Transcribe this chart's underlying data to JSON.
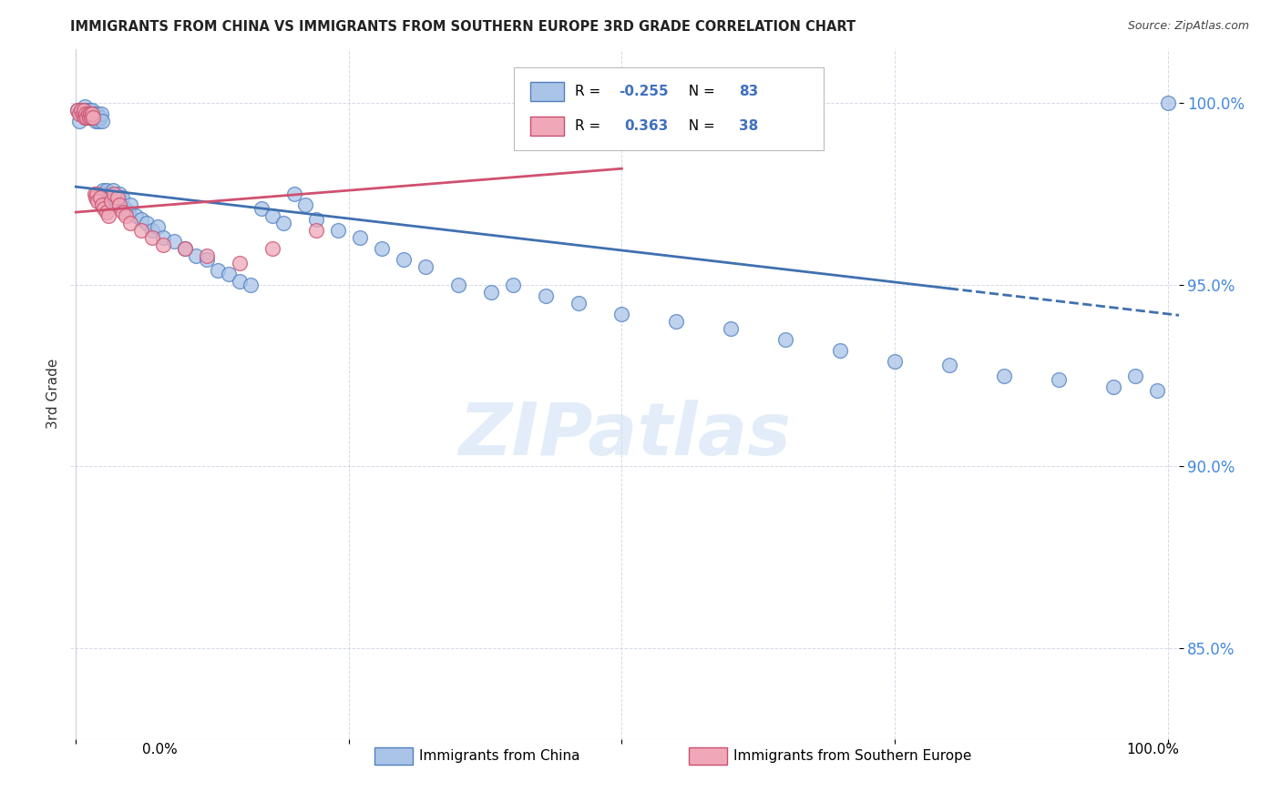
{
  "title": "IMMIGRANTS FROM CHINA VS IMMIGRANTS FROM SOUTHERN EUROPE 3RD GRADE CORRELATION CHART",
  "source": "Source: ZipAtlas.com",
  "ylabel": "3rd Grade",
  "legend_china": "Immigrants from China",
  "legend_se": "Immigrants from Southern Europe",
  "R_china": -0.255,
  "N_china": 83,
  "R_se": 0.363,
  "N_se": 38,
  "color_china_fill": "#aac4e8",
  "color_china_edge": "#5080c0",
  "color_se_fill": "#f0a8b8",
  "color_se_edge": "#c85070",
  "color_china_line": "#4070b0",
  "color_se_line": "#d05070",
  "watermark": "ZIPatlas",
  "y_ticks": [
    0.85,
    0.9,
    0.95,
    1.0
  ],
  "y_labels": [
    "85.0%",
    "90.0%",
    "95.0%",
    "100.0%"
  ],
  "xlim": [
    -0.005,
    1.01
  ],
  "ylim": [
    0.825,
    1.015
  ],
  "china_line_x0": 0.0,
  "china_line_y0": 0.977,
  "china_line_x1": 1.0,
  "china_line_y1": 0.942,
  "china_line_solid_end": 0.8,
  "se_line_x0": 0.0,
  "se_line_y0": 0.97,
  "se_line_x1": 0.5,
  "se_line_y1": 0.982,
  "china_scatter_x": [
    0.001,
    0.003,
    0.005,
    0.005,
    0.006,
    0.007,
    0.008,
    0.009,
    0.01,
    0.01,
    0.011,
    0.012,
    0.012,
    0.013,
    0.014,
    0.015,
    0.015,
    0.016,
    0.017,
    0.018,
    0.019,
    0.02,
    0.02,
    0.021,
    0.022,
    0.023,
    0.024,
    0.025,
    0.026,
    0.028,
    0.03,
    0.032,
    0.034,
    0.036,
    0.038,
    0.04,
    0.042,
    0.045,
    0.048,
    0.05,
    0.055,
    0.06,
    0.065,
    0.07,
    0.075,
    0.08,
    0.09,
    0.1,
    0.11,
    0.12,
    0.13,
    0.14,
    0.15,
    0.16,
    0.17,
    0.18,
    0.19,
    0.2,
    0.21,
    0.22,
    0.24,
    0.26,
    0.28,
    0.3,
    0.32,
    0.35,
    0.38,
    0.4,
    0.43,
    0.46,
    0.5,
    0.55,
    0.6,
    0.65,
    0.7,
    0.75,
    0.8,
    0.85,
    0.9,
    0.95,
    0.97,
    0.99,
    1.0
  ],
  "china_scatter_y": [
    0.998,
    0.995,
    0.998,
    0.997,
    0.998,
    0.997,
    0.999,
    0.996,
    0.998,
    0.997,
    0.996,
    0.997,
    0.998,
    0.997,
    0.996,
    0.997,
    0.998,
    0.996,
    0.997,
    0.995,
    0.996,
    0.997,
    0.996,
    0.995,
    0.996,
    0.997,
    0.995,
    0.976,
    0.975,
    0.976,
    0.974,
    0.975,
    0.976,
    0.974,
    0.973,
    0.975,
    0.974,
    0.971,
    0.97,
    0.972,
    0.969,
    0.968,
    0.967,
    0.965,
    0.966,
    0.963,
    0.962,
    0.96,
    0.958,
    0.957,
    0.954,
    0.953,
    0.951,
    0.95,
    0.971,
    0.969,
    0.967,
    0.975,
    0.972,
    0.968,
    0.965,
    0.963,
    0.96,
    0.957,
    0.955,
    0.95,
    0.948,
    0.95,
    0.947,
    0.945,
    0.942,
    0.94,
    0.938,
    0.935,
    0.932,
    0.929,
    0.928,
    0.925,
    0.924,
    0.922,
    0.925,
    0.921,
    1.0
  ],
  "se_scatter_x": [
    0.001,
    0.003,
    0.005,
    0.006,
    0.007,
    0.008,
    0.009,
    0.01,
    0.011,
    0.012,
    0.013,
    0.014,
    0.015,
    0.016,
    0.017,
    0.018,
    0.019,
    0.02,
    0.022,
    0.024,
    0.026,
    0.028,
    0.03,
    0.032,
    0.035,
    0.038,
    0.04,
    0.043,
    0.046,
    0.05,
    0.06,
    0.07,
    0.08,
    0.1,
    0.12,
    0.15,
    0.18,
    0.22
  ],
  "se_scatter_y": [
    0.998,
    0.997,
    0.998,
    0.997,
    0.998,
    0.996,
    0.997,
    0.996,
    0.997,
    0.996,
    0.997,
    0.996,
    0.997,
    0.996,
    0.975,
    0.974,
    0.975,
    0.973,
    0.974,
    0.972,
    0.971,
    0.97,
    0.969,
    0.973,
    0.975,
    0.974,
    0.972,
    0.97,
    0.969,
    0.967,
    0.965,
    0.963,
    0.961,
    0.96,
    0.958,
    0.956,
    0.96,
    0.965
  ]
}
